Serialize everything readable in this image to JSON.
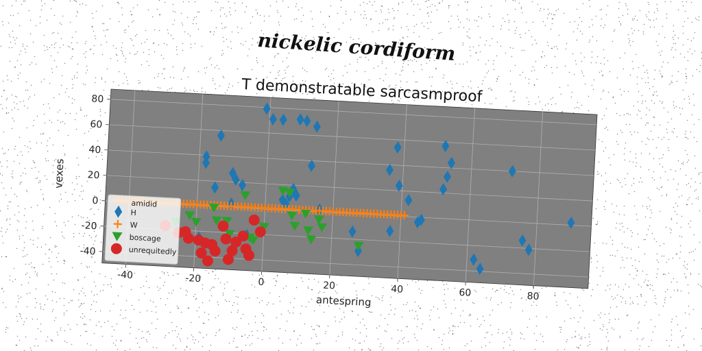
{
  "suptitle": "nickelic cordiform",
  "chart_data": {
    "type": "scatter",
    "title": "T demonstratable sarcasmproof",
    "xlabel": "antespring",
    "ylabel": "vexes",
    "xlim": [
      -47,
      96
    ],
    "ylim": [
      -49,
      88
    ],
    "xticks": [
      -40,
      -20,
      0,
      20,
      40,
      60,
      80
    ],
    "yticks": [
      -40,
      -20,
      0,
      20,
      40,
      60,
      80
    ],
    "grid": true,
    "rotation_deg": 3,
    "legend": {
      "title": "amidid",
      "placement": "lower-left"
    },
    "series": [
      {
        "name": "H",
        "marker": "diamond",
        "color": "#1f77b4",
        "x": [
          -1,
          1,
          4,
          9,
          11,
          14,
          -18,
          -14,
          -18,
          -15,
          -10,
          -9,
          -10,
          -7,
          13,
          5,
          7,
          8,
          9,
          6,
          -19,
          -5,
          16,
          26,
          28,
          37,
          38,
          36,
          39,
          42,
          46,
          52,
          53,
          54,
          52,
          72,
          62,
          64,
          76,
          78,
          90,
          45
        ],
        "y": [
          79,
          71,
          71,
          72,
          71,
          67,
          39,
          56,
          34,
          15,
          27,
          22,
          3,
          18,
          36,
          8,
          11,
          17,
          12,
          5,
          -25,
          -21,
          2,
          -14,
          -29,
          -12,
          54,
          36,
          24,
          13,
          -2,
          23,
          33,
          44,
          57,
          40,
          -31,
          -38,
          -14,
          -21,
          2,
          -4
        ]
      },
      {
        "name": "W",
        "marker": "plus",
        "color": "#ff7f0e",
        "x": [
          -44,
          -43,
          -42,
          -41,
          -40,
          -39,
          -38,
          -37,
          -36,
          -35,
          -34,
          -33,
          -32,
          -31,
          -30,
          -29,
          -28,
          -27,
          -26,
          -25,
          -24,
          -23,
          -22,
          -21,
          -20,
          -19,
          -18,
          -17,
          -16,
          -15,
          -14,
          -13,
          -12,
          -11,
          -10,
          -9,
          -8,
          -7,
          -6,
          -5,
          -4,
          -3,
          -2,
          -1,
          0,
          1,
          2,
          3,
          4,
          5,
          6,
          7,
          8,
          9,
          10,
          11,
          12,
          13,
          14,
          15,
          16,
          17,
          18,
          19,
          20,
          21,
          22,
          23,
          24,
          25,
          26,
          27,
          28,
          29,
          30,
          31,
          32,
          33,
          34,
          35,
          36,
          37,
          38,
          39,
          40,
          41
        ],
        "y": [
          1,
          1,
          1,
          1,
          1,
          1,
          1,
          1,
          1,
          1,
          1,
          1,
          1,
          1,
          1,
          1,
          1,
          1,
          1,
          1,
          1,
          1,
          1,
          1,
          1,
          1,
          1,
          1,
          1,
          1,
          1,
          1,
          1,
          1,
          1,
          1,
          1,
          1,
          1,
          1,
          1,
          1,
          1,
          1,
          1,
          1,
          1,
          1,
          1,
          1,
          1,
          1,
          1,
          1,
          1,
          1,
          1,
          1,
          1,
          1,
          1,
          1,
          1,
          1,
          1,
          1,
          1,
          1,
          1,
          1,
          1,
          1,
          1,
          1,
          1,
          1,
          1,
          1,
          1,
          1,
          1,
          1,
          1,
          1,
          1,
          1
        ]
      },
      {
        "name": "boscage",
        "marker": "triangle-down",
        "color": "#2ca02c",
        "x": [
          -26,
          -22,
          -20,
          -15,
          -14,
          -11,
          -10,
          -6,
          -4,
          -3,
          0,
          5,
          7,
          8,
          9,
          12,
          13,
          14,
          16,
          17,
          28
        ],
        "y": [
          -14,
          -8,
          -13,
          -1,
          -11,
          -11,
          -21,
          10,
          -23,
          -25,
          -14,
          15,
          14,
          -4,
          -12,
          -2,
          -15,
          -22,
          -6,
          -12,
          -25
        ]
      },
      {
        "name": "unrequitedly",
        "marker": "circle",
        "color": "#d62728",
        "x": [
          -29,
          -25,
          -23,
          -22,
          -19,
          -18,
          -17,
          -16,
          -15,
          -14,
          -12,
          -11,
          -10,
          -9,
          -8,
          -6,
          -5,
          -4,
          -3,
          -1
        ],
        "y": [
          -17,
          -22,
          -21,
          -26,
          -27,
          -37,
          -29,
          -43,
          -30,
          -35,
          -15,
          -25,
          -41,
          -34,
          -27,
          -22,
          -32,
          -37,
          -9,
          -18
        ]
      }
    ]
  }
}
